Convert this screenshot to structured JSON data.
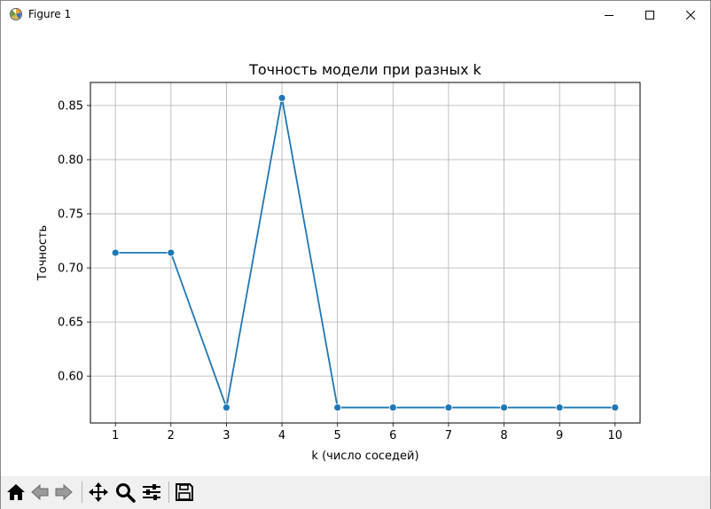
{
  "window": {
    "title": "Figure 1",
    "app_icon": "matplotlib-figure-icon",
    "controls": [
      "minimize-icon",
      "maximize-icon",
      "close-icon"
    ]
  },
  "toolbar": {
    "tools": [
      "home-icon",
      "back-arrow-icon",
      "forward-arrow-icon",
      "pan-icon",
      "zoom-icon",
      "configure-subplots-icon",
      "save-icon"
    ]
  },
  "colors": {
    "series": "#1f77b4",
    "grid": "#b0b0b0",
    "toolbar_bg": "#f0f0f0"
  },
  "chart_data": {
    "type": "line",
    "title": "Точность модели при разных k",
    "xlabel": "k (число соседей)",
    "ylabel": "Точность",
    "x": [
      1,
      2,
      3,
      4,
      5,
      6,
      7,
      8,
      9,
      10
    ],
    "xticks": [
      "1",
      "2",
      "3",
      "4",
      "5",
      "6",
      "7",
      "8",
      "9",
      "10"
    ],
    "yticks": [
      "0.60",
      "0.65",
      "0.70",
      "0.75",
      "0.80",
      "0.85"
    ],
    "ytick_values": [
      0.6,
      0.65,
      0.7,
      0.75,
      0.8,
      0.85
    ],
    "series": [
      {
        "values": [
          0.714,
          0.714,
          0.571,
          0.857,
          0.571,
          0.571,
          0.571,
          0.571,
          0.571,
          0.571
        ],
        "marker": "circle"
      }
    ],
    "xlim": [
      0.55,
      10.45
    ],
    "ylim": [
      0.5567,
      0.8713
    ],
    "grid": true,
    "legend": "none"
  }
}
